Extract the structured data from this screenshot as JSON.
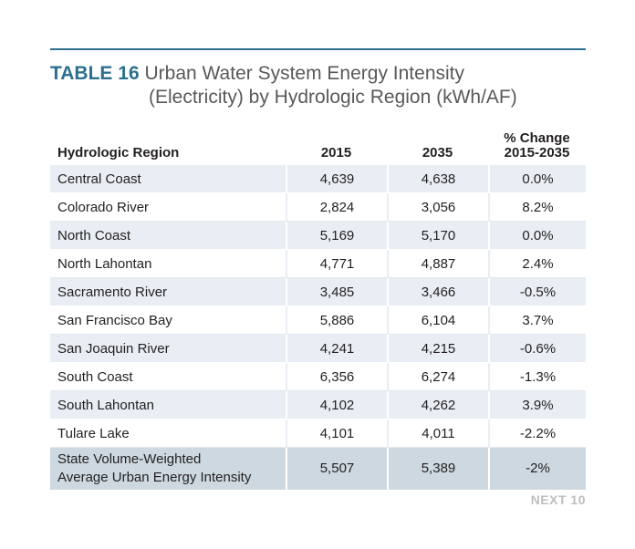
{
  "title": {
    "number": "TABLE 16",
    "line1": "Urban Water System Energy Intensity",
    "line2": "(Electricity) by Hydrologic Region (kWh/AF)"
  },
  "columns": [
    "Hydrologic Region",
    "2015",
    "2035",
    "% Change 2015-2035"
  ],
  "column_change_l1": "% Change",
  "column_change_l2": "2015-2035",
  "rows": [
    {
      "region": "Central Coast",
      "y2015": "4,639",
      "y2035": "4,638",
      "change": "0.0%"
    },
    {
      "region": "Colorado River",
      "y2015": "2,824",
      "y2035": "3,056",
      "change": "8.2%"
    },
    {
      "region": "North Coast",
      "y2015": "5,169",
      "y2035": "5,170",
      "change": "0.0%"
    },
    {
      "region": "North Lahontan",
      "y2015": "4,771",
      "y2035": "4,887",
      "change": "2.4%"
    },
    {
      "region": "Sacramento River",
      "y2015": "3,485",
      "y2035": "3,466",
      "change": "-0.5%"
    },
    {
      "region": "San Francisco Bay",
      "y2015": "5,886",
      "y2035": "6,104",
      "change": "3.7%"
    },
    {
      "region": "San Joaquin River",
      "y2015": "4,241",
      "y2035": "4,215",
      "change": "-0.6%"
    },
    {
      "region": "South Coast",
      "y2015": "6,356",
      "y2035": "6,274",
      "change": "-1.3%"
    },
    {
      "region": "South Lahontan",
      "y2015": "4,102",
      "y2035": "4,262",
      "change": "3.9%"
    },
    {
      "region": "Tulare Lake",
      "y2015": "4,101",
      "y2035": "4,011",
      "change": "-2.2%"
    }
  ],
  "total": {
    "region_l1": "State Volume-Weighted",
    "region_l2": "Average Urban Energy Intensity",
    "y2015": "5,507",
    "y2035": "5,389",
    "change": "-2%"
  },
  "footer": "NEXT 10",
  "colors": {
    "accent": "#2e6f8e",
    "row_shade": "#e8eef3",
    "total_shade": "#cdd8e0"
  }
}
